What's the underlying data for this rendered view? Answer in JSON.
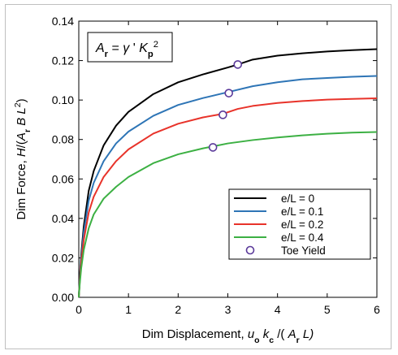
{
  "chart_data": {
    "type": "line",
    "xlabel_parts": [
      "Dim Displacement, ",
      "u",
      "o",
      " k",
      "c",
      " /( ",
      "A",
      "r",
      " L)"
    ],
    "ylabel_parts": [
      "Dim Force, ",
      "H",
      "/(",
      "A",
      "r",
      " B L",
      "2",
      ")"
    ],
    "annotation_parts": [
      "A",
      "r",
      " = ",
      "γ",
      " ' ",
      "K",
      "p",
      "2"
    ],
    "xlim": [
      0,
      6
    ],
    "ylim": [
      0,
      0.14
    ],
    "x_ticks": [
      0,
      1,
      2,
      3,
      4,
      5,
      6
    ],
    "y_ticks": [
      0.0,
      0.02,
      0.04,
      0.06,
      0.08,
      0.1,
      0.12,
      0.14
    ],
    "x_tick_labels": [
      "0",
      "1",
      "2",
      "3",
      "4",
      "5",
      "6"
    ],
    "y_tick_labels": [
      "0.00",
      "0.02",
      "0.04",
      "0.06",
      "0.08",
      "0.10",
      "0.12",
      "0.14"
    ],
    "grid": false,
    "legend_position": "lower-right",
    "series": [
      {
        "name": "e/L = 0",
        "color": "#000000",
        "x": [
          0,
          0.02,
          0.05,
          0.1,
          0.2,
          0.3,
          0.5,
          0.75,
          1.0,
          1.5,
          2.0,
          2.5,
          3.0,
          3.2,
          3.5,
          4.0,
          4.5,
          5.0,
          5.5,
          6.0
        ],
        "y": [
          0,
          0.01,
          0.022,
          0.036,
          0.054,
          0.064,
          0.077,
          0.087,
          0.094,
          0.103,
          0.109,
          0.113,
          0.1165,
          0.118,
          0.1205,
          0.1225,
          0.1237,
          0.1246,
          0.1253,
          0.1258
        ]
      },
      {
        "name": "e/L = 0.1",
        "color": "#2e75b6",
        "x": [
          0,
          0.02,
          0.05,
          0.1,
          0.2,
          0.3,
          0.5,
          0.75,
          1.0,
          1.5,
          2.0,
          2.5,
          3.0,
          3.5,
          4.0,
          4.5,
          5.0,
          5.5,
          6.0
        ],
        "y": [
          0,
          0.009,
          0.02,
          0.033,
          0.049,
          0.058,
          0.069,
          0.078,
          0.084,
          0.092,
          0.0975,
          0.101,
          0.104,
          0.107,
          0.109,
          0.1105,
          0.1112,
          0.1118,
          0.1122
        ]
      },
      {
        "name": "e/L = 0.2",
        "color": "#e8332a",
        "x": [
          0,
          0.02,
          0.05,
          0.1,
          0.2,
          0.3,
          0.5,
          0.75,
          1.0,
          1.5,
          2.0,
          2.5,
          2.9,
          3.2,
          3.5,
          4.0,
          4.5,
          5.0,
          5.5,
          6.0
        ],
        "y": [
          0,
          0.008,
          0.018,
          0.029,
          0.043,
          0.051,
          0.061,
          0.069,
          0.075,
          0.083,
          0.088,
          0.0912,
          0.093,
          0.0955,
          0.097,
          0.0985,
          0.0995,
          0.1002,
          0.1006,
          0.1009
        ]
      },
      {
        "name": "e/L = 0.4",
        "color": "#3cb043",
        "x": [
          0,
          0.02,
          0.05,
          0.1,
          0.2,
          0.3,
          0.5,
          0.75,
          1.0,
          1.5,
          2.0,
          2.5,
          2.7,
          3.0,
          3.5,
          4.0,
          4.5,
          5.0,
          5.5,
          6.0
        ],
        "y": [
          0,
          0.007,
          0.015,
          0.024,
          0.035,
          0.042,
          0.05,
          0.056,
          0.061,
          0.068,
          0.0725,
          0.0755,
          0.0765,
          0.078,
          0.0797,
          0.081,
          0.0821,
          0.0829,
          0.0835,
          0.0838
        ]
      }
    ],
    "toe_yield": {
      "name": "Toe Yield",
      "color": "#5b3a9a",
      "points": [
        {
          "x": 3.2,
          "y": 0.118
        },
        {
          "x": 3.02,
          "y": 0.1035
        },
        {
          "x": 2.9,
          "y": 0.0925
        },
        {
          "x": 2.7,
          "y": 0.076
        }
      ]
    }
  }
}
